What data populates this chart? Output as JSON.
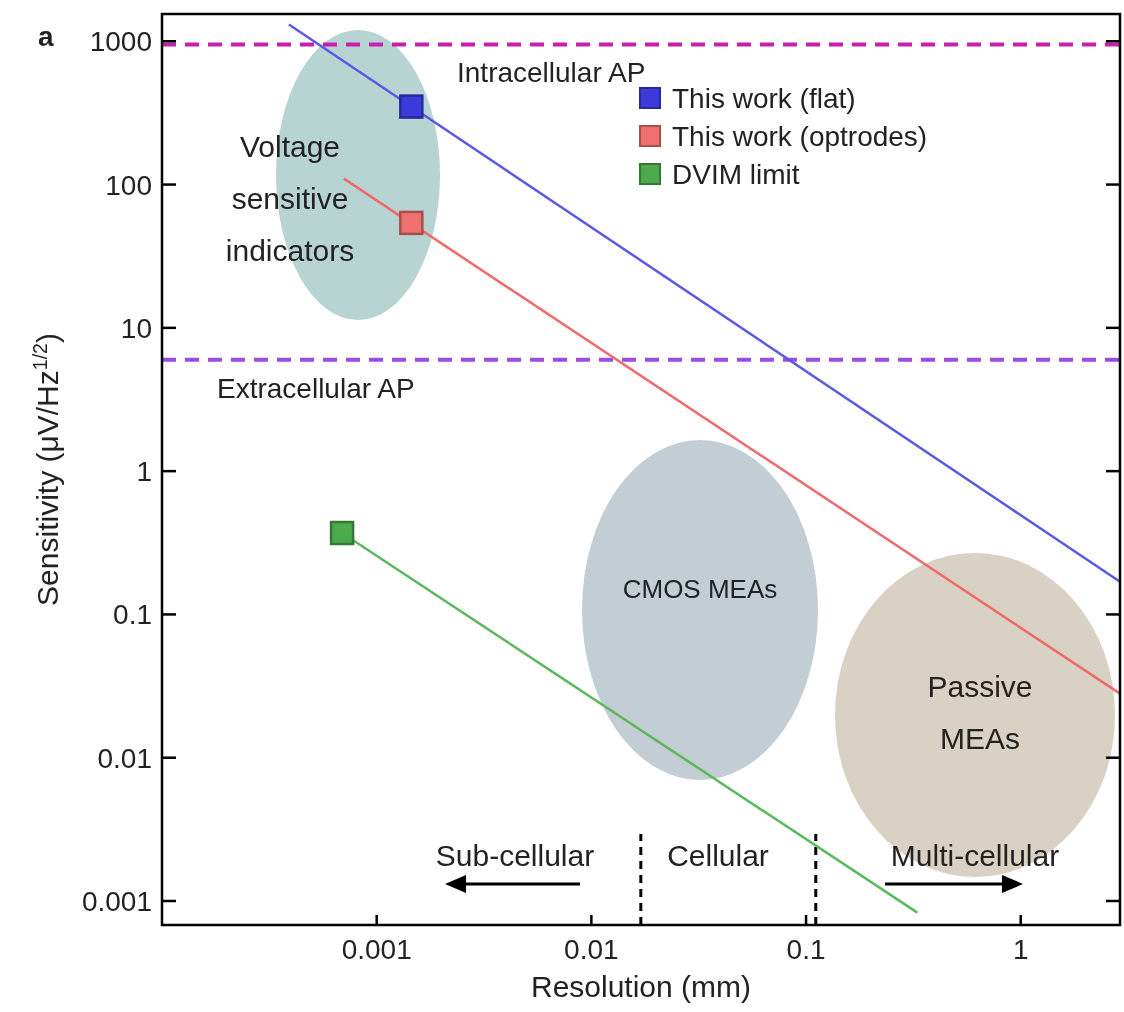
{
  "chart_data": {
    "type": "scatter",
    "xlabel": "Resolution (mm)",
    "ylabel": "Sensitivity (μV/Hz$^{1/2}$)",
    "log": "xy",
    "xlim": [
      0.0001,
      2.9
    ],
    "ylim": [
      0.00068,
      1550
    ],
    "xticks": [
      0.001,
      0.01,
      0.1,
      1
    ],
    "yticks": [
      0.001,
      0.01,
      0.1,
      1,
      10,
      100,
      1000
    ],
    "grid": false,
    "legend": "top right",
    "series": [
      {
        "name": "This work (flat)",
        "marker": "square",
        "color": "#3b3bdc",
        "x": [
          0.00145
        ],
        "values": [
          350
        ]
      },
      {
        "name": "This work (optrodes)",
        "marker": "square",
        "color": "#f07070",
        "x": [
          0.00145
        ],
        "values": [
          54
        ]
      },
      {
        "name": "DVIM limit",
        "marker": "square",
        "color": "#4caa4c",
        "x": [
          0.00069
        ],
        "values": [
          0.37
        ]
      },
      {
        "type": "line",
        "marker": "none",
        "color": "#5a5ae6",
        "x": [
          0.00039,
          2.9
        ],
        "values": [
          1310,
          0.169
        ]
      },
      {
        "type": "line",
        "marker": "none",
        "color": "#f06a6a",
        "x": [
          0.000703,
          2.9
        ],
        "values": [
          110,
          0.028
        ]
      },
      {
        "type": "line",
        "marker": "none",
        "color": "#5cb85c",
        "x": [
          0.00069,
          0.33
        ],
        "values": [
          0.37,
          0.00083
        ]
      }
    ],
    "ref_lines": [
      {
        "axis": "y",
        "value": 950,
        "label": "Intracellular AP",
        "color": "#c71fb0",
        "line_style": "dashed"
      },
      {
        "axis": "y",
        "value": 6,
        "label": "Extracellular AP",
        "color": "#9b4de0",
        "line_style": "dashed"
      },
      {
        "axis": "x",
        "value": 0.017,
        "color": "#000000",
        "line_style": "dashed"
      },
      {
        "axis": "x",
        "value": 0.111,
        "color": "#000000",
        "line_style": "dashed"
      }
    ],
    "annotations": [
      "a",
      "Voltage\nsensitive\nindicators",
      "CMOS MEAs",
      "Passive\nMEAs",
      "Sub-cellular",
      "Cellular",
      "Multi-cellular"
    ]
  }
}
